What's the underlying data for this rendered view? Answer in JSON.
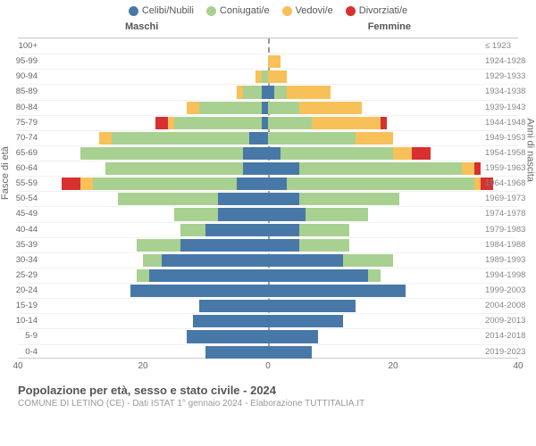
{
  "legend": [
    {
      "label": "Celibi/Nubili",
      "color": "#4878a8"
    },
    {
      "label": "Coniugati/e",
      "color": "#a8d090"
    },
    {
      "label": "Vedovi/e",
      "color": "#f8c058"
    },
    {
      "label": "Divorziati/e",
      "color": "#d83030"
    }
  ],
  "headers": {
    "male": "Maschi",
    "female": "Femmine"
  },
  "y_left_title": "Fasce di età",
  "y_right_title": "Anni di nascita",
  "x_ticks": [
    40,
    20,
    0,
    20,
    40
  ],
  "x_max": 40,
  "colors": {
    "celibi": "#4878a8",
    "coniugati": "#a8d090",
    "vedovi": "#f8c058",
    "divorziati": "#d83030",
    "grid": "#cccccc",
    "text": "#666666",
    "bg": "#ffffff"
  },
  "title": "Popolazione per età, sesso e stato civile - 2024",
  "subtitle": "COMUNE DI LETINO (CE) - Dati ISTAT 1° gennaio 2024 - Elaborazione TUTTITALIA.IT",
  "rows": [
    {
      "age": "100+",
      "birth": "≤ 1923",
      "m": [
        0,
        0,
        0,
        0
      ],
      "f": [
        0,
        0,
        0,
        0
      ]
    },
    {
      "age": "95-99",
      "birth": "1924-1928",
      "m": [
        0,
        0,
        0,
        0
      ],
      "f": [
        0,
        0,
        2,
        0
      ]
    },
    {
      "age": "90-94",
      "birth": "1929-1933",
      "m": [
        0,
        1,
        1,
        0
      ],
      "f": [
        0,
        0,
        3,
        0
      ]
    },
    {
      "age": "85-89",
      "birth": "1934-1938",
      "m": [
        1,
        3,
        1,
        0
      ],
      "f": [
        1,
        2,
        7,
        0
      ]
    },
    {
      "age": "80-84",
      "birth": "1939-1943",
      "m": [
        1,
        10,
        2,
        0
      ],
      "f": [
        0,
        5,
        10,
        0
      ]
    },
    {
      "age": "75-79",
      "birth": "1944-1948",
      "m": [
        1,
        14,
        1,
        2
      ],
      "f": [
        0,
        7,
        11,
        1
      ]
    },
    {
      "age": "70-74",
      "birth": "1949-1953",
      "m": [
        3,
        22,
        2,
        0
      ],
      "f": [
        0,
        14,
        6,
        0
      ]
    },
    {
      "age": "65-69",
      "birth": "1954-1958",
      "m": [
        4,
        26,
        0,
        0
      ],
      "f": [
        2,
        18,
        3,
        3
      ]
    },
    {
      "age": "60-64",
      "birth": "1959-1963",
      "m": [
        4,
        22,
        0,
        0
      ],
      "f": [
        5,
        26,
        2,
        1
      ]
    },
    {
      "age": "55-59",
      "birth": "1964-1968",
      "m": [
        5,
        23,
        2,
        3
      ],
      "f": [
        3,
        30,
        1,
        2
      ]
    },
    {
      "age": "50-54",
      "birth": "1969-1973",
      "m": [
        8,
        16,
        0,
        0
      ],
      "f": [
        5,
        16,
        0,
        0
      ]
    },
    {
      "age": "45-49",
      "birth": "1974-1978",
      "m": [
        8,
        7,
        0,
        0
      ],
      "f": [
        6,
        10,
        0,
        0
      ]
    },
    {
      "age": "40-44",
      "birth": "1979-1983",
      "m": [
        10,
        4,
        0,
        0
      ],
      "f": [
        5,
        8,
        0,
        0
      ]
    },
    {
      "age": "35-39",
      "birth": "1984-1988",
      "m": [
        14,
        7,
        0,
        0
      ],
      "f": [
        5,
        8,
        0,
        0
      ]
    },
    {
      "age": "30-34",
      "birth": "1989-1993",
      "m": [
        17,
        3,
        0,
        0
      ],
      "f": [
        12,
        8,
        0,
        0
      ]
    },
    {
      "age": "25-29",
      "birth": "1994-1998",
      "m": [
        19,
        2,
        0,
        0
      ],
      "f": [
        16,
        2,
        0,
        0
      ]
    },
    {
      "age": "20-24",
      "birth": "1999-2003",
      "m": [
        22,
        0,
        0,
        0
      ],
      "f": [
        22,
        0,
        0,
        0
      ]
    },
    {
      "age": "15-19",
      "birth": "2004-2008",
      "m": [
        11,
        0,
        0,
        0
      ],
      "f": [
        14,
        0,
        0,
        0
      ]
    },
    {
      "age": "10-14",
      "birth": "2009-2013",
      "m": [
        12,
        0,
        0,
        0
      ],
      "f": [
        12,
        0,
        0,
        0
      ]
    },
    {
      "age": "5-9",
      "birth": "2014-2018",
      "m": [
        13,
        0,
        0,
        0
      ],
      "f": [
        8,
        0,
        0,
        0
      ]
    },
    {
      "age": "0-4",
      "birth": "2019-2023",
      "m": [
        10,
        0,
        0,
        0
      ],
      "f": [
        7,
        0,
        0,
        0
      ]
    }
  ]
}
